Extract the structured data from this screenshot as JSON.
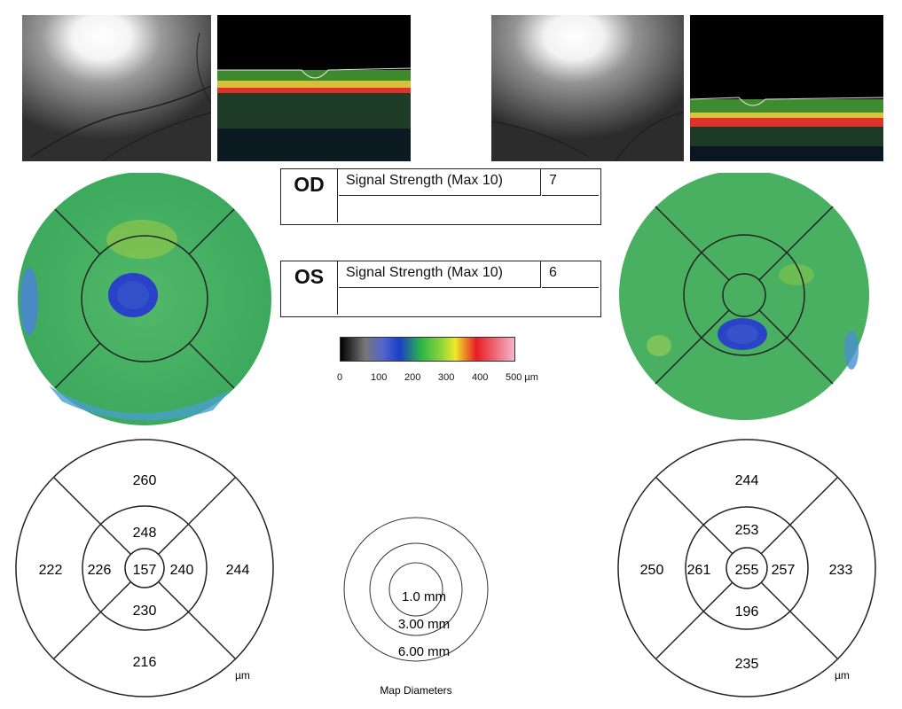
{
  "od": {
    "eye": "OD",
    "signal_label": "Signal Strength (Max 10)",
    "signal_value": "7",
    "sectors": {
      "center": "157",
      "inner_superior": "248",
      "inner_temporal": "226",
      "inner_nasal": "240",
      "inner_inferior": "230",
      "outer_superior": "260",
      "outer_temporal": "222",
      "outer_nasal": "244",
      "outer_inferior": "216"
    },
    "unit": "µm"
  },
  "os": {
    "eye": "OS",
    "signal_label": "Signal Strength (Max 10)",
    "signal_value": "6",
    "sectors": {
      "center": "255",
      "inner_superior": "253",
      "inner_temporal": "261",
      "inner_nasal": "257",
      "inner_inferior": "196",
      "outer_superior": "244",
      "outer_temporal": "250",
      "outer_nasal": "233",
      "outer_inferior": "235"
    },
    "unit": "µm"
  },
  "scale": {
    "ticks": [
      "0",
      "100",
      "200",
      "300",
      "400",
      "500 µm"
    ]
  },
  "map_diameters": {
    "rings": [
      "1.0 mm",
      "3.00 mm",
      "6.00 mm"
    ],
    "caption": "Map Diameters"
  },
  "colors": {
    "thin": "#2a4fd1",
    "normal": "#39b54a",
    "thick": "#e82025"
  }
}
